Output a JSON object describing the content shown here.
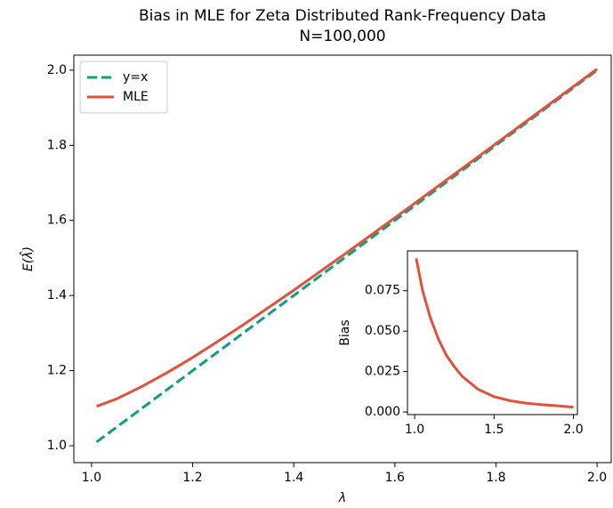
{
  "chart_data": [
    {
      "type": "line",
      "title": "Bias in MLE for Zeta Distributed Rank-Frequency Data",
      "subtitle": "N=100,000",
      "xlabel": "λ",
      "ylabel": "E(λ̂)",
      "x": [
        1.01,
        1.05,
        1.1,
        1.15,
        1.2,
        1.25,
        1.3,
        1.4,
        1.5,
        1.6,
        1.7,
        1.8,
        1.9,
        2.0
      ],
      "series": [
        {
          "name": "y=x",
          "color": "#0f9e82",
          "linestyle": "dashed",
          "values": [
            1.01,
            1.05,
            1.1,
            1.15,
            1.2,
            1.25,
            1.3,
            1.4,
            1.5,
            1.6,
            1.7,
            1.8,
            1.9,
            2.0
          ]
        },
        {
          "name": "MLE",
          "color": "#e2513a",
          "linestyle": "solid",
          "values": [
            1.105,
            1.125,
            1.158,
            1.195,
            1.235,
            1.278,
            1.322,
            1.414,
            1.5095,
            1.607,
            1.7055,
            1.8045,
            1.9038,
            2.003
          ]
        }
      ],
      "xlim": [
        0.965,
        2.028
      ],
      "ylim": [
        0.955,
        2.04
      ],
      "xticks": [
        {
          "value": 1.0,
          "label": "1.0"
        },
        1.2,
        1.4,
        1.6,
        1.8,
        {
          "value": 2.0,
          "label": "2.0"
        }
      ],
      "yticks": [
        {
          "value": 1.0,
          "label": "1.0"
        },
        1.2,
        1.4,
        1.6,
        1.8,
        {
          "value": 2.0,
          "label": "2.0"
        }
      ],
      "legend": "upper left"
    },
    {
      "type": "line",
      "ylabel": "Bias",
      "x": [
        1.01,
        1.05,
        1.1,
        1.15,
        1.2,
        1.25,
        1.3,
        1.4,
        1.5,
        1.6,
        1.7,
        1.8,
        1.9,
        2.0
      ],
      "series": [
        {
          "name": "MLE",
          "color": "#e2513a",
          "linestyle": "solid",
          "values": [
            0.095,
            0.075,
            0.058,
            0.045,
            0.035,
            0.028,
            0.022,
            0.014,
            0.0095,
            0.007,
            0.0055,
            0.0045,
            0.0038,
            0.003
          ]
        }
      ],
      "xlim": [
        0.955,
        2.025
      ],
      "ylim": [
        -0.0016,
        0.0996
      ],
      "xticks": [
        {
          "value": 1.0,
          "label": "1.0"
        },
        1.5,
        {
          "value": 2.0,
          "label": "2.0"
        }
      ],
      "yticks": [
        {
          "value": 0,
          "label": "0.000"
        },
        {
          "value": 0.025,
          "label": "0.025"
        },
        {
          "value": 0.05,
          "label": "0.050"
        },
        {
          "value": 0.075,
          "label": "0.075"
        }
      ]
    }
  ]
}
